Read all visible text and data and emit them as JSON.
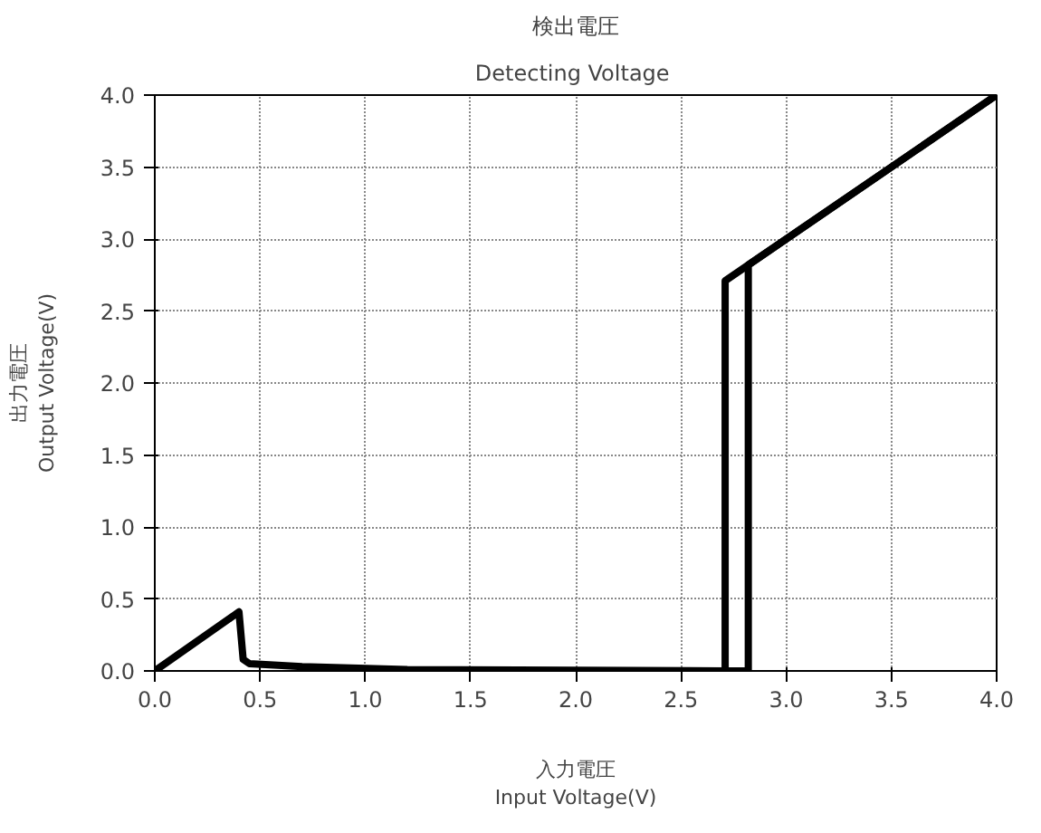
{
  "chart_data": {
    "type": "line",
    "title": "検出電圧",
    "subtitle": "Detecting  Voltage",
    "xlabel": "入力電圧\nInput Voltage(V)",
    "ylabel": "出力電圧\nOutput Voltage(V)",
    "xlim": [
      0,
      4.0
    ],
    "ylim": [
      0,
      4.0
    ],
    "xticks": [
      {
        "value": 0,
        "label": "0.0"
      },
      0.5,
      {
        "value": 1,
        "label": "1.0"
      },
      1.5,
      {
        "value": 2,
        "label": "2.0"
      },
      2.5,
      {
        "value": 3,
        "label": "3.0"
      },
      3.5,
      {
        "value": 4,
        "label": "4.0"
      }
    ],
    "yticks": [
      {
        "value": 0,
        "label": "0.0"
      },
      0.5,
      {
        "value": 1,
        "label": "1.0"
      },
      1.5,
      {
        "value": 2,
        "label": "2.0"
      },
      2.5,
      {
        "value": 3,
        "label": "3.0"
      },
      3.5,
      {
        "value": 4,
        "label": "4.0"
      }
    ],
    "grid": true,
    "line_style": "solid",
    "series": [
      {
        "color": "#000000",
        "x": [
          0,
          0.4,
          0.42,
          0.45,
          0.7,
          1.2,
          2.71,
          2.71,
          2.82,
          4.0
        ],
        "values": [
          0,
          0.41,
          0.08,
          0.05,
          0.03,
          0.01,
          0,
          2.71,
          2.82,
          4.0
        ]
      },
      {
        "color": "#000000",
        "x": [
          4.0,
          2.82,
          2.82,
          2.71
        ],
        "values": [
          4.0,
          2.82,
          0,
          0
        ]
      }
    ]
  }
}
